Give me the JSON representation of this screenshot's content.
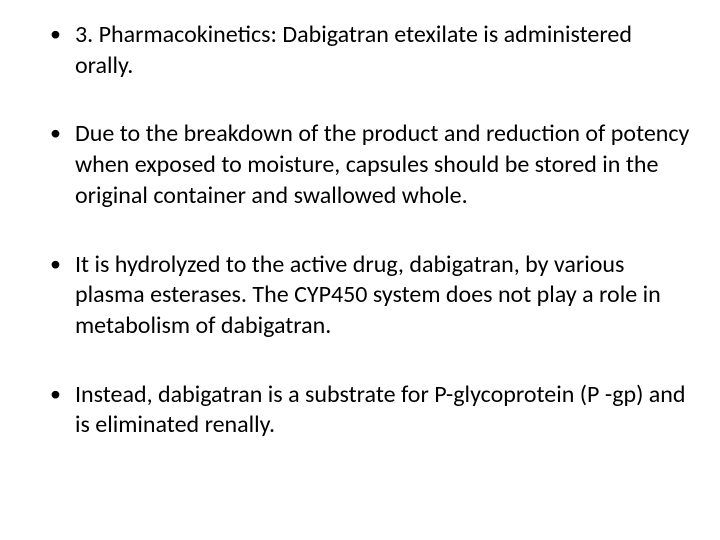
{
  "slide": {
    "bullets": [
      {
        "text": "3. Pharmacokinetics: Dabigatran etexilate is administered orally."
      },
      {
        "text": "Due to the breakdown of the product and reduction of potency when exposed to moisture, capsules should be stored in the original container and swallowed whole."
      },
      {
        "text": " It is hydrolyzed to the active drug, dabigatran, by various plasma esterases. The CYP450 system does not play a role in metabolism of dabigatran."
      },
      {
        "text": " Instead, dabigatran is a substrate for P-glycoprotein (P -gp) and is eliminated renally."
      }
    ],
    "styling": {
      "background_color": "#ffffff",
      "text_color": "#000000",
      "font_family": "Calibri",
      "font_size_pt": 24,
      "bullet_marker": "•",
      "line_height": 1.28
    }
  }
}
